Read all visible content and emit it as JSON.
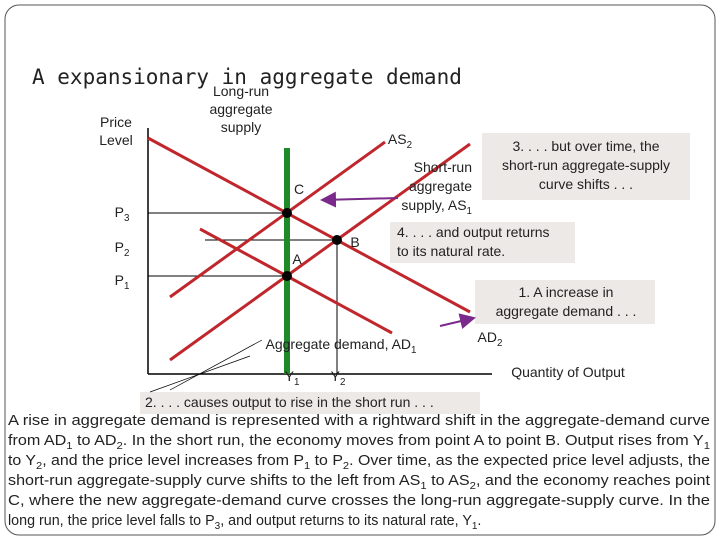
{
  "title": "A expansionary in aggregate demand",
  "axes": {
    "y_label": [
      [
        "Price"
      ],
      [
        "Level"
      ]
    ],
    "x_label": [
      [
        "Quantity of Output"
      ]
    ]
  },
  "price_levels": [
    [
      [
        "P",
        {
          "sub": "3"
        }
      ]
    ],
    [
      [
        "P",
        {
          "sub": "2"
        }
      ]
    ],
    [
      [
        "P",
        {
          "sub": "1"
        }
      ]
    ]
  ],
  "output_levels": [
    [
      [
        "Y",
        {
          "sub": "1"
        }
      ]
    ],
    [
      [
        "Y",
        {
          "sub": "2"
        }
      ]
    ]
  ],
  "points": [
    [
      [
        "C"
      ]
    ],
    [
      [
        "A"
      ]
    ],
    [
      [
        "B"
      ]
    ]
  ],
  "curves": {
    "lras": [
      [
        "Long-run"
      ],
      [
        "aggregate"
      ],
      [
        "supply"
      ]
    ],
    "as2": [
      [
        "AS",
        {
          "sub": "2"
        }
      ]
    ],
    "as1": [
      [
        "Short-run"
      ],
      [
        "aggregate"
      ],
      [
        "supply, AS",
        {
          "sub": "1"
        }
      ]
    ],
    "ad1": [
      [
        "Aggregate demand, AD",
        {
          "sub": "1"
        }
      ]
    ],
    "ad2": [
      [
        "AD",
        {
          "sub": "2"
        }
      ]
    ]
  },
  "notes": {
    "note1": [
      [
        "1.  A increase in"
      ],
      [
        "aggregate demand . . ."
      ]
    ],
    "note2": [
      [
        "2. . . . causes output to rise in the short run . . ."
      ]
    ],
    "note3": [
      [
        "3. . . . but over time, the"
      ],
      [
        "short-run aggregate-supply"
      ],
      [
        "curve shifts . . ."
      ]
    ],
    "note4": [
      [
        "4. . . . and output returns"
      ],
      [
        "to its natural rate."
      ]
    ]
  },
  "paragraph": [
    [
      "A rise in aggregate demand is represented with a rightward shift in the aggregate-demand curve"
    ],
    [
      "from AD",
      {
        "sub": "1"
      },
      " to AD",
      {
        "sub": "2"
      },
      ". In the short run, the economy moves from point A to point B. Output rises from Y",
      {
        "sub": "1"
      }
    ],
    [
      "to Y",
      {
        "sub": "2"
      },
      ", and the price level increases from P",
      {
        "sub": "1"
      },
      " to P",
      {
        "sub": "2"
      },
      ". Over time, as the expected price level adjusts, the"
    ],
    [
      "short-run aggregate-supply curve shifts to the left from AS",
      {
        "sub": "1"
      },
      " to AS",
      {
        "sub": "2"
      },
      ", and the economy reaches point"
    ],
    [
      "C, where the new aggregate-demand curve crosses the long-run aggregate-supply curve. In the"
    ],
    [
      "long run, the price level falls to P",
      {
        "sub": "3"
      },
      ", and output returns to its natural rate, Y",
      {
        "sub": "1"
      },
      "."
    ]
  ]
}
